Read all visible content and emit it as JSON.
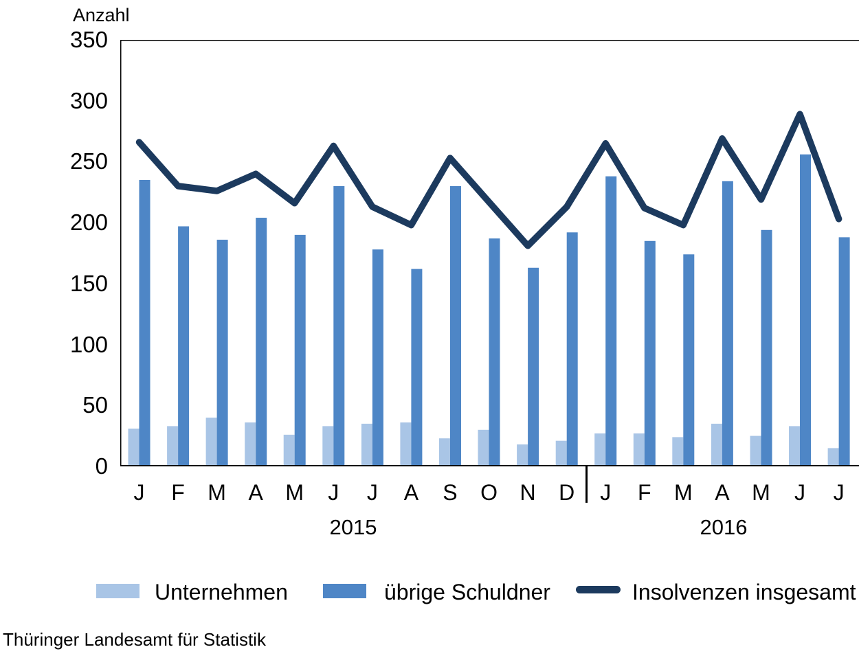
{
  "y_axis_title": "Anzahl",
  "source_note": "Thüringer Landesamt für Statistik",
  "chart_data": {
    "type": "bar+line combo",
    "title": "",
    "ylabel": "Anzahl",
    "xlabel": "",
    "ylim": [
      0,
      350
    ],
    "ytick_step": 50,
    "grid": false,
    "legend_position": "bottom",
    "categories": [
      "J",
      "F",
      "M",
      "A",
      "M",
      "J",
      "J",
      "A",
      "S",
      "O",
      "N",
      "D",
      "J",
      "F",
      "M",
      "A",
      "M",
      "J",
      "J"
    ],
    "year_groups": [
      {
        "label": "2015",
        "span": 12
      },
      {
        "label": "2016",
        "span": 7
      }
    ],
    "series": [
      {
        "name": "Unternehmen",
        "type": "bar",
        "color": "#A9C5E6",
        "values": [
          31,
          33,
          40,
          36,
          26,
          33,
          35,
          36,
          23,
          30,
          18,
          21,
          27,
          27,
          24,
          35,
          25,
          33,
          15
        ]
      },
      {
        "name": "übrige Schuldner",
        "type": "bar",
        "color": "#4E86C6",
        "values": [
          235,
          197,
          186,
          204,
          190,
          230,
          178,
          162,
          230,
          187,
          163,
          192,
          238,
          185,
          174,
          234,
          194,
          256,
          188
        ]
      },
      {
        "name": "Insolvenzen insgesamt",
        "type": "line",
        "color": "#1C3A5E",
        "values": [
          266,
          230,
          226,
          240,
          216,
          263,
          213,
          198,
          253,
          217,
          181,
          213,
          265,
          212,
          198,
          269,
          219,
          289,
          203
        ]
      }
    ]
  }
}
